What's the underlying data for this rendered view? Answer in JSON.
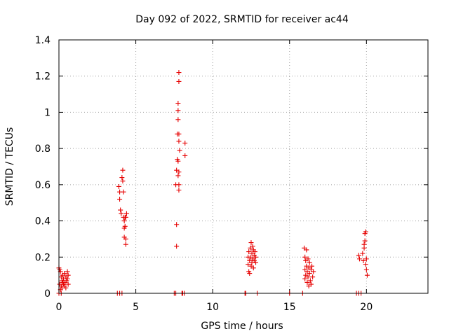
{
  "chart_data": {
    "type": "scatter",
    "title": "Day 092 of 2022, SRMTID for receiver ac44",
    "xlabel": "GPS time / hours",
    "ylabel": "SRMTID / TECUs",
    "xlim": [
      0,
      24
    ],
    "ylim": [
      0,
      1.4
    ],
    "xticks": [
      "0",
      "5",
      "10",
      "15",
      "20"
    ],
    "yticks": [
      "0",
      "0.2",
      "0.4",
      "0.6",
      "0.8",
      "1",
      "1.2",
      "1.4"
    ],
    "grid": true,
    "marker": "+",
    "color": "#e60000",
    "series": [
      {
        "values": [
          [
            0.0,
            0.14
          ],
          [
            0.05,
            0.13
          ],
          [
            0.05,
            0.05
          ],
          [
            0.1,
            0.12
          ],
          [
            0.1,
            0.02
          ],
          [
            0.15,
            0.09
          ],
          [
            0.15,
            0.04
          ],
          [
            0.2,
            0.07
          ],
          [
            0.2,
            0.03
          ],
          [
            0.25,
            0.1
          ],
          [
            0.25,
            0.06
          ],
          [
            0.3,
            0.05
          ],
          [
            0.3,
            0.08
          ],
          [
            0.35,
            0.04
          ],
          [
            0.35,
            0.11
          ],
          [
            0.4,
            0.06
          ],
          [
            0.45,
            0.09
          ],
          [
            0.45,
            0.03
          ],
          [
            0.5,
            0.07
          ],
          [
            0.55,
            0.12
          ],
          [
            0.55,
            0.08
          ],
          [
            0.6,
            0.1
          ],
          [
            0.6,
            0.05
          ],
          [
            3.9,
            0.59
          ],
          [
            3.95,
            0.52
          ],
          [
            3.95,
            0.56
          ],
          [
            4.0,
            0.46
          ],
          [
            4.05,
            0.44
          ],
          [
            4.1,
            0.64
          ],
          [
            4.15,
            0.68
          ],
          [
            4.15,
            0.62
          ],
          [
            4.2,
            0.56
          ],
          [
            4.2,
            0.42
          ],
          [
            4.25,
            0.4
          ],
          [
            4.25,
            0.36
          ],
          [
            4.25,
            0.31
          ],
          [
            4.3,
            0.42
          ],
          [
            4.3,
            0.37
          ],
          [
            4.35,
            0.3
          ],
          [
            4.35,
            0.27
          ],
          [
            4.35,
            0.42
          ],
          [
            4.4,
            0.44
          ],
          [
            7.6,
            0.6
          ],
          [
            7.65,
            0.68
          ],
          [
            7.65,
            0.38
          ],
          [
            7.65,
            0.26
          ],
          [
            7.7,
            0.74
          ],
          [
            7.7,
            0.88
          ],
          [
            7.75,
            1.05
          ],
          [
            7.75,
            1.01
          ],
          [
            7.75,
            0.96
          ],
          [
            7.75,
            0.73
          ],
          [
            7.75,
            0.65
          ],
          [
            7.8,
            1.22
          ],
          [
            7.8,
            1.17
          ],
          [
            7.8,
            0.88
          ],
          [
            7.8,
            0.84
          ],
          [
            7.8,
            0.67
          ],
          [
            7.8,
            0.6
          ],
          [
            7.8,
            0.57
          ],
          [
            7.85,
            0.79
          ],
          [
            8.2,
            0.83
          ],
          [
            8.2,
            0.76
          ],
          [
            12.3,
            0.2
          ],
          [
            12.3,
            0.16
          ],
          [
            12.35,
            0.12
          ],
          [
            12.35,
            0.23
          ],
          [
            12.4,
            0.18
          ],
          [
            12.4,
            0.11
          ],
          [
            12.45,
            0.25
          ],
          [
            12.45,
            0.2
          ],
          [
            12.5,
            0.28
          ],
          [
            12.5,
            0.15
          ],
          [
            12.55,
            0.22
          ],
          [
            12.55,
            0.17
          ],
          [
            12.6,
            0.26
          ],
          [
            12.6,
            0.19
          ],
          [
            12.65,
            0.24
          ],
          [
            12.65,
            0.14
          ],
          [
            12.7,
            0.21
          ],
          [
            12.7,
            0.18
          ],
          [
            12.75,
            0.23
          ],
          [
            12.8,
            0.17
          ],
          [
            12.8,
            0.2
          ],
          [
            15.95,
            0.25
          ],
          [
            16.0,
            0.2
          ],
          [
            16.0,
            0.13
          ],
          [
            16.0,
            0.08
          ],
          [
            16.05,
            0.18
          ],
          [
            16.05,
            0.1
          ],
          [
            16.1,
            0.24
          ],
          [
            16.1,
            0.15
          ],
          [
            16.15,
            0.06
          ],
          [
            16.15,
            0.12
          ],
          [
            16.2,
            0.19
          ],
          [
            16.2,
            0.09
          ],
          [
            16.25,
            0.04
          ],
          [
            16.25,
            0.14
          ],
          [
            16.3,
            0.11
          ],
          [
            16.3,
            0.17
          ],
          [
            16.35,
            0.07
          ],
          [
            16.4,
            0.13
          ],
          [
            16.4,
            0.05
          ],
          [
            16.45,
            0.15
          ],
          [
            16.5,
            0.09
          ],
          [
            16.55,
            0.12
          ],
          [
            19.5,
            0.21
          ],
          [
            19.55,
            0.19
          ],
          [
            19.75,
            0.22
          ],
          [
            19.8,
            0.18
          ],
          [
            19.85,
            0.27
          ],
          [
            19.85,
            0.25
          ],
          [
            19.9,
            0.33
          ],
          [
            19.9,
            0.29
          ],
          [
            19.95,
            0.34
          ],
          [
            19.95,
            0.16
          ],
          [
            20.0,
            0.13
          ],
          [
            20.0,
            0.19
          ],
          [
            20.05,
            0.1
          ],
          [
            3.8,
            0.0
          ],
          [
            3.95,
            0.0
          ],
          [
            4.1,
            0.0
          ],
          [
            7.5,
            0.0
          ],
          [
            7.6,
            0.0
          ],
          [
            8.0,
            0.0
          ],
          [
            8.05,
            0.0
          ],
          [
            8.15,
            0.0
          ],
          [
            12.1,
            0.0
          ],
          [
            12.15,
            0.0
          ],
          [
            12.9,
            0.0
          ],
          [
            15.0,
            0.0
          ],
          [
            15.85,
            0.0
          ],
          [
            19.35,
            0.0
          ],
          [
            19.5,
            0.0
          ],
          [
            19.65,
            0.0
          ],
          [
            0.0,
            0.0
          ],
          [
            0.15,
            0.0
          ]
        ]
      }
    ]
  }
}
